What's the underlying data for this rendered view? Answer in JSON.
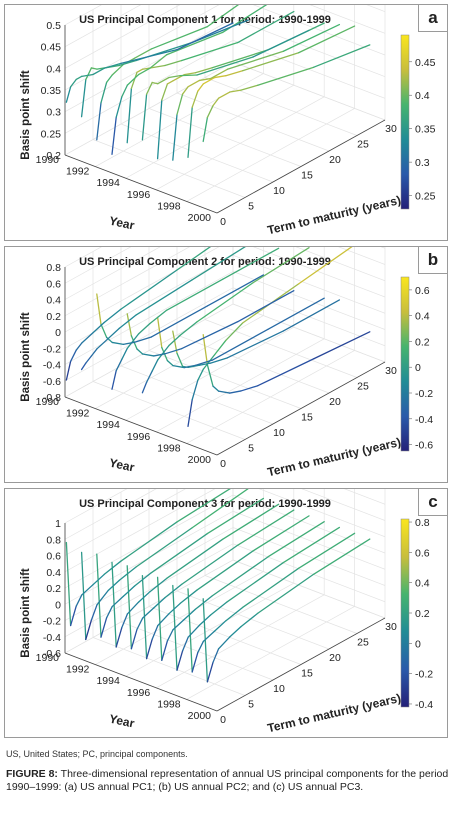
{
  "chart_data": [
    {
      "type": "line3d",
      "letter": "a",
      "title": "US Principal Component 1 for period: 1990-1999",
      "xlabel": "Term to maturity (years)",
      "ylabel": "Year",
      "zlabel": "Basis point shift",
      "x_ticks": [
        "0",
        "5",
        "10",
        "15",
        "20",
        "25",
        "30"
      ],
      "y_ticks": [
        "1990",
        "1992",
        "1994",
        "1996",
        "1998",
        "2000"
      ],
      "z_ticks": [
        "0.2",
        "0.25",
        "0.3",
        "0.35",
        "0.4",
        "0.45",
        "0.5"
      ],
      "xlim": [
        0,
        30
      ],
      "ylim": [
        1990,
        2000
      ],
      "zlim": [
        0.2,
        0.5
      ],
      "colorbar": {
        "min": 0.23,
        "max": 0.49,
        "ticks": [
          "0.45",
          "0.4",
          "0.35",
          "0.3",
          "0.25"
        ]
      },
      "terms": [
        0.25,
        1,
        2,
        3,
        5,
        7,
        10,
        20,
        30
      ],
      "series": [
        {
          "year": 1990,
          "values": [
            0.32,
            0.35,
            0.36,
            0.36,
            0.35,
            0.35,
            0.34,
            0.3,
            0.29
          ]
        },
        {
          "year": 1991,
          "values": [
            0.3,
            0.38,
            0.4,
            0.39,
            0.38,
            0.37,
            0.36,
            0.33,
            0.31
          ]
        },
        {
          "year": 1992,
          "values": [
            0.26,
            0.34,
            0.38,
            0.39,
            0.4,
            0.4,
            0.4,
            0.38,
            0.4
          ]
        },
        {
          "year": 1993,
          "values": [
            0.24,
            0.32,
            0.36,
            0.38,
            0.39,
            0.39,
            0.4,
            0.38,
            0.39
          ]
        },
        {
          "year": 1994,
          "values": [
            0.28,
            0.4,
            0.43,
            0.43,
            0.42,
            0.41,
            0.4,
            0.37,
            0.37
          ]
        },
        {
          "year": 1995,
          "values": [
            0.3,
            0.4,
            0.42,
            0.41,
            0.41,
            0.4,
            0.38,
            0.35,
            0.34
          ]
        },
        {
          "year": 1996,
          "values": [
            0.27,
            0.4,
            0.43,
            0.43,
            0.43,
            0.42,
            0.41,
            0.38,
            0.37
          ]
        },
        {
          "year": 1997,
          "values": [
            0.28,
            0.38,
            0.42,
            0.43,
            0.43,
            0.42,
            0.42,
            0.39,
            0.38
          ]
        },
        {
          "year": 1998,
          "values": [
            0.3,
            0.41,
            0.44,
            0.45,
            0.45,
            0.44,
            0.43,
            0.4,
            0.39
          ]
        },
        {
          "year": 1999,
          "values": [
            0.35,
            0.4,
            0.42,
            0.43,
            0.43,
            0.42,
            0.41,
            0.38,
            0.36
          ]
        }
      ]
    },
    {
      "type": "line3d",
      "letter": "b",
      "title": "US Principal Component 2 for period: 1990-1999",
      "xlabel": "Term to maturity (years)",
      "ylabel": "Year",
      "zlabel": "Basis point shift",
      "x_ticks": [
        "0",
        "5",
        "10",
        "15",
        "20",
        "25",
        "30"
      ],
      "y_ticks": [
        "1990",
        "1992",
        "1994",
        "1996",
        "1998",
        "2000"
      ],
      "z_ticks": [
        "-0.8",
        "-0.6",
        "-0.4",
        "-0.2",
        "0",
        "0.2",
        "0.4",
        "0.6",
        "0.8"
      ],
      "xlim": [
        0,
        30
      ],
      "ylim": [
        1990,
        2000
      ],
      "zlim": [
        -0.8,
        0.8
      ],
      "colorbar": {
        "min": -0.65,
        "max": 0.7,
        "ticks": [
          "0.6",
          "0.4",
          "0.2",
          "0",
          "-0.2",
          "-0.4",
          "-0.6"
        ]
      },
      "terms": [
        0.25,
        1,
        2,
        3,
        5,
        7,
        10,
        20,
        30
      ],
      "series": [
        {
          "year": 1990,
          "values": [
            -0.6,
            -0.4,
            -0.3,
            -0.25,
            -0.2,
            -0.15,
            -0.1,
            0.0,
            0.1
          ]
        },
        {
          "year": 1991,
          "values": [
            -0.4,
            -0.35,
            -0.3,
            -0.25,
            -0.2,
            -0.15,
            -0.1,
            -0.05,
            0.0
          ]
        },
        {
          "year": 1992,
          "values": [
            0.6,
            0.2,
            0.0,
            -0.1,
            -0.2,
            -0.25,
            -0.3,
            -0.3,
            -0.3
          ]
        },
        {
          "year": 1993,
          "values": [
            -0.5,
            -0.3,
            -0.2,
            -0.1,
            0.0,
            0.05,
            0.1,
            0.1,
            0.1
          ]
        },
        {
          "year": 1994,
          "values": [
            0.5,
            0.2,
            0.0,
            -0.1,
            -0.2,
            -0.25,
            -0.3,
            -0.35,
            -0.35
          ]
        },
        {
          "year": 1995,
          "values": [
            -0.4,
            -0.3,
            -0.2,
            -0.1,
            0.0,
            0.05,
            0.1,
            0.2,
            0.25
          ]
        },
        {
          "year": 1996,
          "values": [
            0.6,
            0.2,
            0.0,
            -0.1,
            -0.2,
            -0.25,
            -0.3,
            -0.3,
            -0.3
          ]
        },
        {
          "year": 1997,
          "values": [
            0.5,
            0.2,
            0.0,
            -0.05,
            -0.1,
            -0.15,
            -0.2,
            -0.25,
            -0.25
          ]
        },
        {
          "year": 1998,
          "values": [
            -0.6,
            -0.3,
            -0.1,
            0.0,
            0.1,
            0.2,
            0.3,
            0.4,
            0.5
          ]
        },
        {
          "year": 1999,
          "values": [
            0.6,
            0.2,
            -0.1,
            -0.2,
            -0.3,
            -0.35,
            -0.4,
            -0.45,
            -0.5
          ]
        }
      ]
    },
    {
      "type": "line3d",
      "letter": "c",
      "title": "US Principal Component 3 for period: 1990-1999",
      "xlabel": "Term to maturity (years)",
      "ylabel": "Year",
      "zlabel": "Basis point shift",
      "x_ticks": [
        "0",
        "5",
        "10",
        "15",
        "20",
        "25",
        "30"
      ],
      "y_ticks": [
        "1990",
        "1992",
        "1994",
        "1996",
        "1998",
        "2000"
      ],
      "z_ticks": [
        "-0.6",
        "-0.4",
        "-0.2",
        "0",
        "0.2",
        "0.4",
        "0.6",
        "0.8",
        "1"
      ],
      "xlim": [
        0,
        30
      ],
      "ylim": [
        1990,
        2000
      ],
      "zlim": [
        -0.6,
        1
      ],
      "colorbar": {
        "min": -0.42,
        "max": 0.82,
        "ticks": [
          "0.8",
          "0.6",
          "0.4",
          "0.2",
          "0",
          "-0.2",
          "-0.4"
        ]
      },
      "terms": [
        0.25,
        1,
        2,
        3,
        5,
        7,
        10,
        20,
        30
      ],
      "series": [
        {
          "year": 1990,
          "values": [
            0.75,
            -0.3,
            -0.1,
            0.0,
            0.05,
            0.1,
            0.15,
            0.25,
            0.3
          ]
        },
        {
          "year": 1991,
          "values": [
            0.7,
            -0.4,
            -0.2,
            -0.05,
            0.05,
            0.1,
            0.15,
            0.25,
            0.35
          ]
        },
        {
          "year": 1992,
          "values": [
            0.75,
            -0.3,
            -0.1,
            0.0,
            0.05,
            0.1,
            0.15,
            0.25,
            0.3
          ]
        },
        {
          "year": 1993,
          "values": [
            0.72,
            -0.35,
            -0.15,
            -0.02,
            0.05,
            0.1,
            0.15,
            0.25,
            0.3
          ]
        },
        {
          "year": 1994,
          "values": [
            0.75,
            -0.3,
            -0.1,
            0.0,
            0.05,
            0.1,
            0.15,
            0.25,
            0.3
          ]
        },
        {
          "year": 1995,
          "values": [
            0.7,
            -0.35,
            -0.15,
            -0.02,
            0.05,
            0.1,
            0.15,
            0.25,
            0.3
          ]
        },
        {
          "year": 1996,
          "values": [
            0.75,
            -0.3,
            -0.1,
            0.0,
            0.05,
            0.1,
            0.15,
            0.25,
            0.3
          ]
        },
        {
          "year": 1997,
          "values": [
            0.72,
            -0.35,
            -0.15,
            -0.02,
            0.05,
            0.1,
            0.15,
            0.25,
            0.3
          ]
        },
        {
          "year": 1998,
          "values": [
            0.75,
            -0.3,
            -0.1,
            0.0,
            0.05,
            0.1,
            0.15,
            0.25,
            0.3
          ]
        },
        {
          "year": 1999,
          "values": [
            0.7,
            -0.35,
            -0.15,
            -0.02,
            0.05,
            0.1,
            0.15,
            0.25,
            0.3
          ]
        }
      ]
    }
  ],
  "footnote": "US, United States; PC, principal components.",
  "caption": {
    "label": "FIGURE 8:",
    "text": " Three-dimensional representation of annual US principal components for the period 1990–1999: (a) US annual PC1; (b) US annual PC2; and (c) US annual PC3."
  }
}
